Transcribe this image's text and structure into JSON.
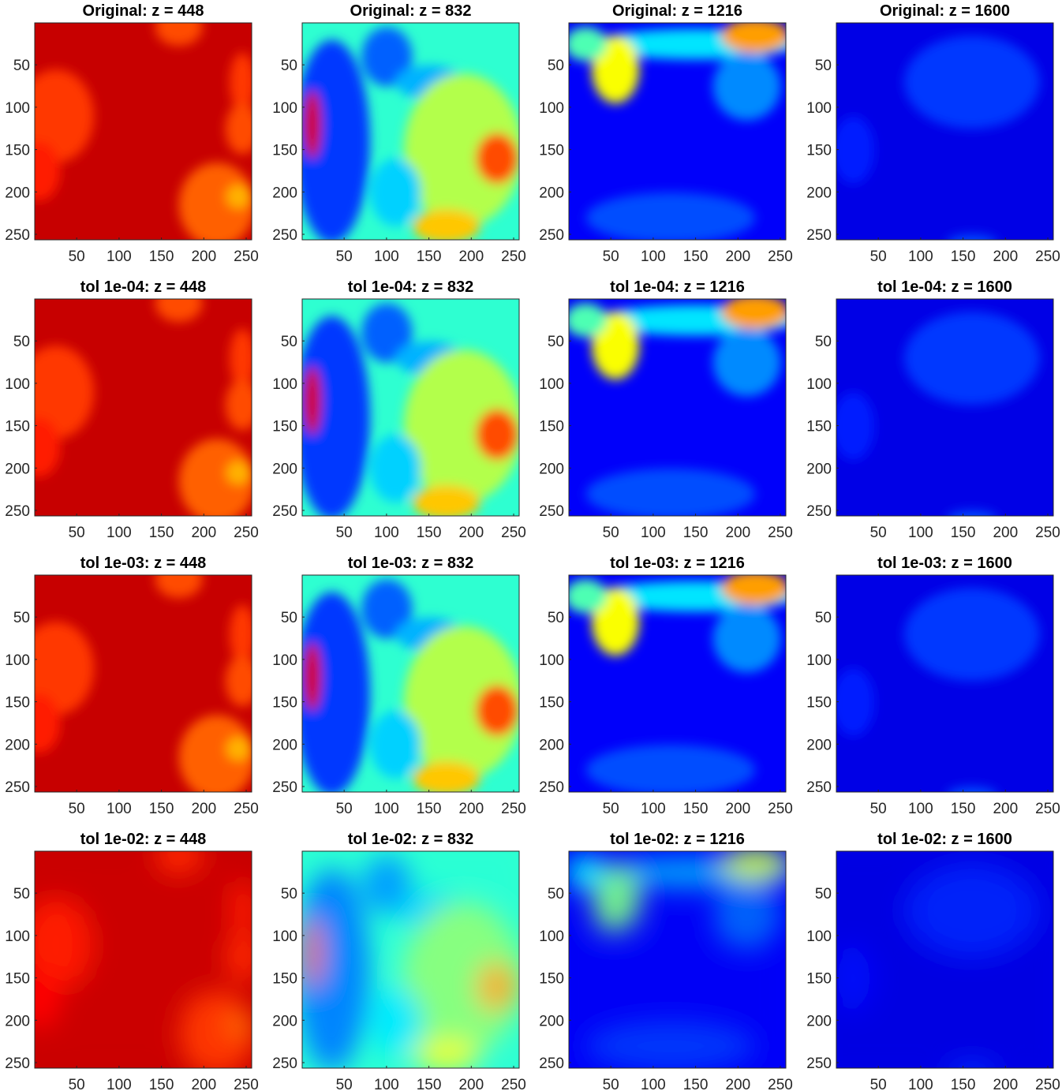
{
  "chart_data": {
    "type": "heatmap",
    "description_rows": [
      "Original",
      "tol 1e-04",
      "tol 1e-03",
      "tol 1e-02"
    ],
    "z_slices": [
      448,
      832,
      1216,
      1600
    ],
    "colormap": "jet",
    "x_ticks": [
      50,
      100,
      150,
      200,
      250
    ],
    "y_ticks": [
      50,
      100,
      150,
      200,
      250
    ],
    "x_range": [
      1,
      256
    ],
    "y_range": [
      1,
      256
    ],
    "y_direction": "reverse",
    "panels": [
      {
        "title": "Original: z = 448",
        "row": 0,
        "col": 0
      },
      {
        "title": "Original: z = 832",
        "row": 0,
        "col": 1
      },
      {
        "title": "Original: z = 1216",
        "row": 0,
        "col": 2
      },
      {
        "title": "Original: z = 1600",
        "row": 0,
        "col": 3
      },
      {
        "title": "tol 1e-04: z = 448",
        "row": 1,
        "col": 0
      },
      {
        "title": "tol 1e-04: z = 832",
        "row": 1,
        "col": 1
      },
      {
        "title": "tol 1e-04: z = 1216",
        "row": 1,
        "col": 2
      },
      {
        "title": "tol 1e-04: z = 1600",
        "row": 1,
        "col": 3
      },
      {
        "title": "tol 1e-03: z = 448",
        "row": 2,
        "col": 0
      },
      {
        "title": "tol 1e-03: z = 832",
        "row": 2,
        "col": 1
      },
      {
        "title": "tol 1e-03: z = 1216",
        "row": 2,
        "col": 2
      },
      {
        "title": "tol 1e-03: z = 1600",
        "row": 2,
        "col": 3
      },
      {
        "title": "tol 1e-02: z = 448",
        "row": 3,
        "col": 0
      },
      {
        "title": "tol 1e-02: z = 832",
        "row": 3,
        "col": 1
      },
      {
        "title": "tol 1e-02: z = 1216",
        "row": 3,
        "col": 2
      },
      {
        "title": "tol 1e-02: z = 1600",
        "row": 3,
        "col": 3
      }
    ]
  }
}
